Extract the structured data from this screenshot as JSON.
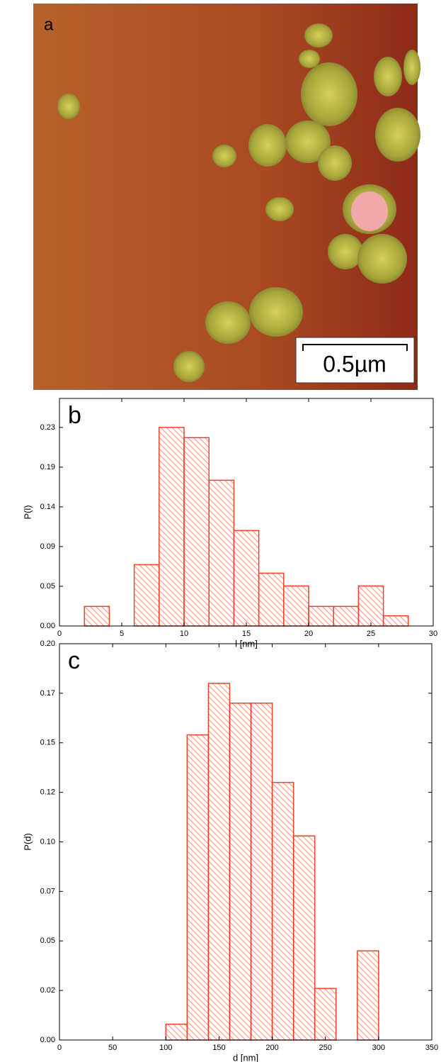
{
  "image": {
    "label": "a",
    "scale_bar": "0.5µm"
  },
  "chart_data": [
    {
      "type": "histogram",
      "panel_label": "b",
      "x_label": "l [nm]",
      "y_label": "P(l)",
      "bins": [
        2,
        4,
        6,
        8,
        10,
        12,
        14,
        16,
        18,
        20,
        22,
        24,
        26,
        28
      ],
      "values": [
        0.023,
        0,
        0.072,
        0.233,
        0.221,
        0.171,
        0.112,
        0.062,
        0.047,
        0.023,
        0.023,
        0.047,
        0.012
      ],
      "color": "#e8452c",
      "xlim": [
        0,
        30
      ],
      "xticks": [
        0,
        5,
        10,
        15,
        20,
        25,
        30
      ],
      "ylim": [
        0,
        0.267
      ],
      "yticks": [
        {
          "value": 0,
          "label": "0.00"
        },
        {
          "value": 0.0466,
          "label": "0.05"
        },
        {
          "value": 0.0932,
          "label": "0.09"
        },
        {
          "value": 0.1398,
          "label": "0.14"
        },
        {
          "value": 0.1864,
          "label": "0.19"
        },
        {
          "value": 0.233,
          "label": "0.23"
        }
      ]
    },
    {
      "type": "histogram",
      "panel_label": "c",
      "x_label": "d [nm]",
      "y_label": "P(d)",
      "bins": [
        100,
        120,
        140,
        160,
        180,
        200,
        220,
        240,
        260,
        280,
        300
      ],
      "values": [
        0.008,
        0.154,
        0.18,
        0.17,
        0.17,
        0.13,
        0.103,
        0.026,
        0,
        0.045
      ],
      "color": "#e8452c",
      "xlim": [
        0,
        350
      ],
      "xticks": [
        0,
        50,
        100,
        150,
        200,
        250,
        300,
        350
      ],
      "ylim": [
        0,
        0.2
      ],
      "yticks": [
        {
          "value": 0,
          "label": "0.00"
        },
        {
          "value": 0.025,
          "label": "0.02"
        },
        {
          "value": 0.05,
          "label": "0.05"
        },
        {
          "value": 0.075,
          "label": "0.07"
        },
        {
          "value": 0.1,
          "label": "0.10"
        },
        {
          "value": 0.125,
          "label": "0.12"
        },
        {
          "value": 0.15,
          "label": "0.15"
        },
        {
          "value": 0.175,
          "label": "0.17"
        },
        {
          "value": 0.2,
          "label": "0.20"
        }
      ]
    }
  ]
}
